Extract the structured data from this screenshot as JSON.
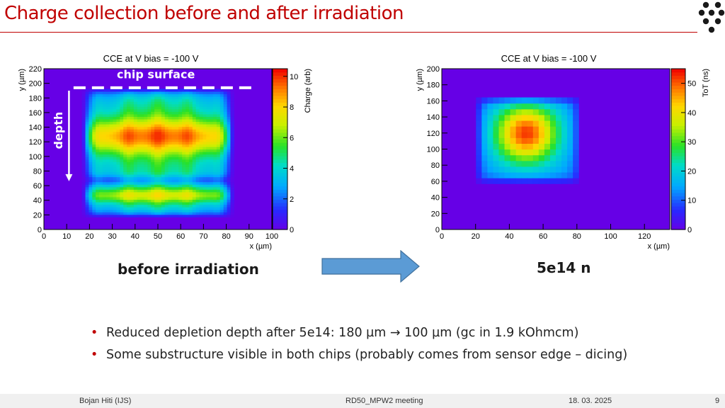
{
  "slide": {
    "title": "Charge collection before and after irradiation",
    "left_caption": "before irradiation",
    "right_caption": "5e14 n",
    "bullets": [
      "Reduced depletion depth after 5e14: 180 µm → 100 µm (gc in 1.9 kOhmcm)",
      "Some substructure visible in both chips (probably comes from sensor edge – dicing)"
    ],
    "footer": {
      "author": "Bojan Hiti (IJS)",
      "meeting": "RD50_MPW2 meeting",
      "date": "18. 03. 2025",
      "page": "9"
    }
  },
  "chart_data": [
    {
      "type": "heatmap",
      "title": "CCE at V bias = -100 V",
      "xlabel": "x (µm)",
      "ylabel": "y (µm)",
      "zlabel": "Charge (arb)",
      "xlim": [
        0,
        100
      ],
      "ylim": [
        0,
        220
      ],
      "zlim": [
        0,
        10.5
      ],
      "xticks": [
        0,
        10,
        20,
        30,
        40,
        50,
        60,
        70,
        80,
        90,
        100
      ],
      "yticks": [
        0,
        20,
        40,
        60,
        80,
        100,
        120,
        140,
        160,
        180,
        200,
        220
      ],
      "zticks": [
        0,
        2,
        4,
        6,
        8,
        10
      ],
      "annotations": {
        "surface": "chip surface",
        "depth": "depth"
      },
      "model": {
        "x_range": [
          17,
          83
        ],
        "y_range": [
          17,
          193
        ],
        "peak_bands_y": [
          47,
          128
        ],
        "stripes_x": [
          23,
          37,
          50,
          63,
          77
        ],
        "max_value": 10
      }
    },
    {
      "type": "heatmap",
      "title": "CCE at V bias = -100 V",
      "xlabel": "x (µm)",
      "ylabel": "y (µm)",
      "zlabel": "ToT (ns)",
      "xlim": [
        0,
        135
      ],
      "ylim": [
        0,
        200
      ],
      "zlim": [
        0,
        55
      ],
      "xticks": [
        0,
        20,
        40,
        60,
        80,
        100,
        120
      ],
      "yticks": [
        0,
        20,
        40,
        60,
        80,
        100,
        120,
        140,
        160,
        180,
        200
      ],
      "zticks": [
        0,
        10,
        20,
        30,
        40,
        50
      ],
      "model": {
        "x_range": [
          20,
          82
        ],
        "y_range": [
          58,
          165
        ],
        "peak_center": [
          50,
          120
        ],
        "max_value": 52
      }
    }
  ]
}
